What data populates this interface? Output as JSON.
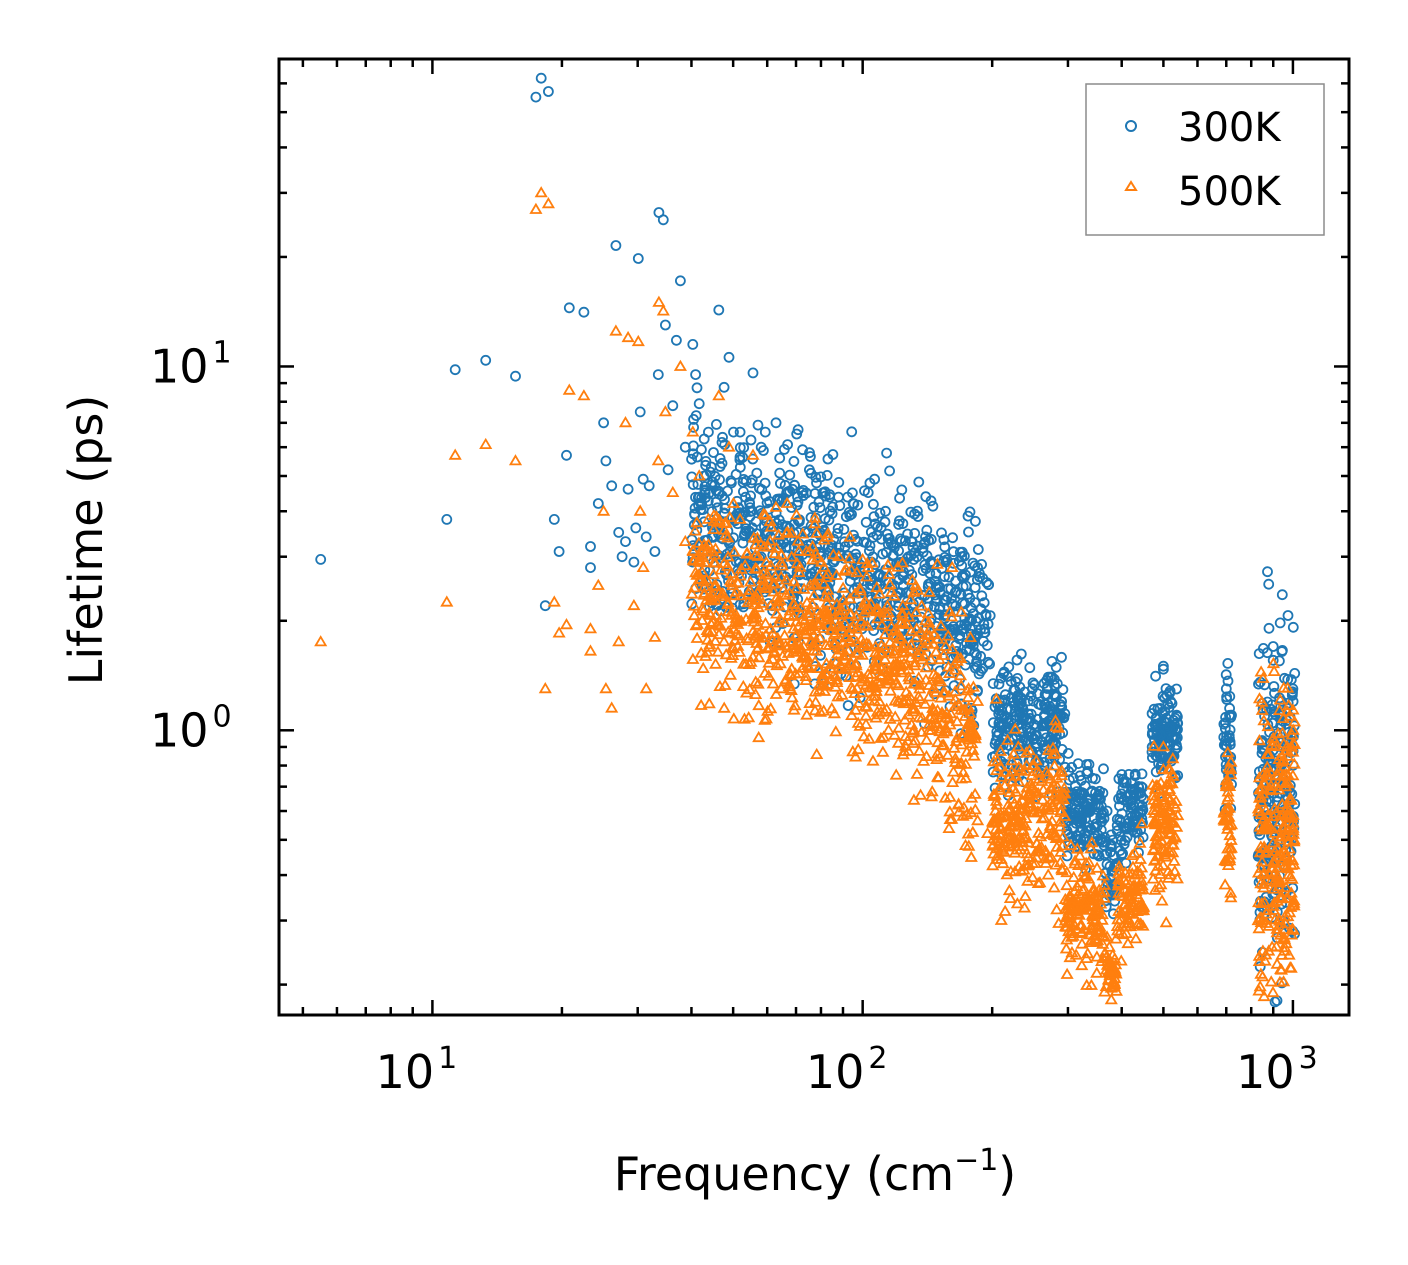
{
  "chart_data": {
    "type": "scatter",
    "xscale": "log",
    "yscale": "log",
    "xlim": [
      4.4,
      1350
    ],
    "ylim": [
      0.165,
      70
    ],
    "xlabel": "Frequency (cm",
    "xlabel_exp": "−1",
    "xlabel_close": ")",
    "ylabel": "Lifetime (ps)",
    "xticks": [
      {
        "value": 10,
        "base": "10",
        "exp": "1"
      },
      {
        "value": 100,
        "base": "10",
        "exp": "2"
      },
      {
        "value": 1000,
        "base": "10",
        "exp": "3"
      }
    ],
    "yticks": [
      {
        "value": 1,
        "base": "10",
        "exp": "0"
      },
      {
        "value": 10,
        "base": "10",
        "exp": "1"
      }
    ],
    "legend_position": "top-right",
    "series": [
      {
        "name": "300K",
        "color": "#1f77b4",
        "marker": "circle",
        "points": [
          [
            5.5,
            2.95
          ],
          [
            10.8,
            3.8
          ],
          [
            11.3,
            9.8
          ],
          [
            13.3,
            10.4
          ],
          [
            15.6,
            9.4
          ],
          [
            17.4,
            55
          ],
          [
            17.9,
            62
          ],
          [
            18.6,
            57
          ],
          [
            18.3,
            2.2
          ],
          [
            19.2,
            3.8
          ],
          [
            19.7,
            3.1
          ],
          [
            20.5,
            5.7
          ],
          [
            20.8,
            14.5
          ],
          [
            22.5,
            14.1
          ],
          [
            23.3,
            2.8
          ],
          [
            23.3,
            3.2
          ],
          [
            24.3,
            4.2
          ],
          [
            25,
            7.0
          ],
          [
            25.3,
            5.5
          ],
          [
            26.1,
            4.7
          ],
          [
            26.7,
            21.5
          ],
          [
            27.1,
            3.5
          ],
          [
            27.6,
            3.0
          ],
          [
            28.1,
            3.3
          ],
          [
            28.5,
            4.6
          ],
          [
            29.4,
            2.9
          ],
          [
            29.7,
            3.6
          ],
          [
            30.1,
            19.8
          ],
          [
            30.4,
            7.5
          ],
          [
            30.9,
            4.9
          ],
          [
            31.4,
            3.4
          ],
          [
            31.9,
            4.7
          ],
          [
            32.9,
            3.1
          ],
          [
            33.5,
            9.5
          ],
          [
            33.6,
            26.5
          ],
          [
            34.4,
            25.3
          ],
          [
            34.8,
            13.0
          ],
          [
            35.3,
            5.2
          ],
          [
            36.2,
            7.8
          ],
          [
            36.9,
            11.8
          ],
          [
            37.7,
            17.2
          ],
          [
            38.7,
            6.0
          ],
          [
            40.3,
            11.5
          ],
          [
            40.9,
            9.5
          ],
          [
            41.7,
            7.9
          ],
          [
            42.8,
            5.0
          ],
          [
            43.8,
            6.6
          ],
          [
            45,
            5.8
          ],
          [
            46.3,
            14.3
          ],
          [
            47.8,
            6.1
          ],
          [
            48.9,
            10.6
          ],
          [
            50.1,
            6.6
          ],
          [
            51.9,
            6.6
          ],
          [
            55.6,
            9.6
          ],
          [
            57.1,
            6.9
          ],
          [
            59.4,
            6.6
          ],
          [
            62.9,
            7.0
          ],
          [
            66.9,
            6.1
          ],
          [
            70.8,
            6.7
          ],
          [
            75.2,
            5.2
          ],
          [
            81,
            4.5
          ],
          [
            88,
            4.8
          ],
          [
            95,
            4.2
          ],
          [
            103,
            4.5
          ],
          [
            113,
            4.0
          ],
          [
            124,
            3.7
          ],
          [
            140,
            3.4
          ],
          [
            156,
            2.9
          ],
          [
            170,
            3.0
          ],
          [
            185,
            2.8
          ],
          [
            192,
            1.9
          ],
          [
            230,
            1.25
          ],
          [
            248,
            1.3
          ],
          [
            270,
            1.4
          ],
          [
            290,
            1.2
          ],
          [
            320,
            0.75
          ],
          [
            350,
            0.65
          ],
          [
            370,
            0.6
          ],
          [
            385,
            0.42
          ],
          [
            410,
            0.72
          ],
          [
            430,
            0.75
          ],
          [
            500,
            1.5
          ],
          [
            520,
            1.2
          ],
          [
            700,
            1.3
          ],
          [
            720,
            1.1
          ],
          [
            900,
            1.7
          ],
          [
            1000,
            1.3
          ]
        ],
        "clusters": [
          {
            "x": [
              40,
              120
            ],
            "center": [
              4.1,
              2.4
            ],
            "slope": -0.72,
            "spread": 0.13,
            "count": 650
          },
          {
            "x": [
              120,
              185
            ],
            "center": [
              2.6,
              1.9
            ],
            "slope": -0.8,
            "spread": 0.12,
            "count": 260
          },
          {
            "x": [
              185,
              200
            ],
            "center": [
              2.3,
              1.8
            ],
            "slope": 0,
            "spread": 0.1,
            "count": 30
          },
          {
            "x": [
              200,
              295
            ],
            "center": [
              0.97,
              1.05
            ],
            "slope": 0,
            "spread": 0.08,
            "count": 260
          },
          {
            "x": [
              295,
              365
            ],
            "center": [
              0.62,
              0.58
            ],
            "slope": 0,
            "spread": 0.06,
            "count": 150
          },
          {
            "x": [
              365,
              390
            ],
            "center": [
              0.42,
              0.38
            ],
            "slope": 0,
            "spread": 0.06,
            "count": 40
          },
          {
            "x": [
              390,
              450
            ],
            "center": [
              0.6,
              0.62
            ],
            "slope": 0,
            "spread": 0.06,
            "count": 90
          },
          {
            "x": [
              470,
              540
            ],
            "center": [
              1.0,
              0.95
            ],
            "slope": 0,
            "spread": 0.06,
            "count": 120
          },
          {
            "x": [
              690,
              720
            ],
            "center": [
              0.9,
              0.9
            ],
            "slope": 0,
            "spread": 0.09,
            "count": 45
          },
          {
            "x": [
              830,
              1010
            ],
            "center": [
              0.65,
              0.75
            ],
            "slope": 0,
            "spread": 0.2,
            "count": 260
          }
        ]
      },
      {
        "name": "500K",
        "color": "#ff7f0e",
        "marker": "triangle",
        "points": [
          [
            5.5,
            1.75
          ],
          [
            10.8,
            2.25
          ],
          [
            11.3,
            5.7
          ],
          [
            13.3,
            6.1
          ],
          [
            15.6,
            5.5
          ],
          [
            17.4,
            27
          ],
          [
            17.9,
            30
          ],
          [
            18.6,
            28
          ],
          [
            18.3,
            1.3
          ],
          [
            19.2,
            2.25
          ],
          [
            19.7,
            1.85
          ],
          [
            20.5,
            1.95
          ],
          [
            20.8,
            8.6
          ],
          [
            22.5,
            8.3
          ],
          [
            23.3,
            1.65
          ],
          [
            23.3,
            1.9
          ],
          [
            24.3,
            2.5
          ],
          [
            25,
            4.0
          ],
          [
            25.3,
            1.3
          ],
          [
            26.1,
            1.15
          ],
          [
            26.7,
            12.5
          ],
          [
            27.1,
            1.75
          ],
          [
            28.1,
            7.0
          ],
          [
            28.5,
            12
          ],
          [
            29.4,
            2.2
          ],
          [
            30.1,
            11.7
          ],
          [
            30.4,
            4.0
          ],
          [
            30.9,
            2.8
          ],
          [
            31.4,
            1.3
          ],
          [
            32.9,
            1.8
          ],
          [
            33.5,
            5.5
          ],
          [
            33.6,
            15
          ],
          [
            34.4,
            14.2
          ],
          [
            34.8,
            7.5
          ],
          [
            36.2,
            4.5
          ],
          [
            37.7,
            10.0
          ],
          [
            38.7,
            3.3
          ],
          [
            40.3,
            6.6
          ],
          [
            41.7,
            5.0
          ],
          [
            43.8,
            3.8
          ],
          [
            46.3,
            8.3
          ],
          [
            47.8,
            3.7
          ],
          [
            48.9,
            6.0
          ],
          [
            50.1,
            4.2
          ],
          [
            51.9,
            3.8
          ],
          [
            55.6,
            5.7
          ],
          [
            59.4,
            3.9
          ],
          [
            62.9,
            4.1
          ],
          [
            66.9,
            3.5
          ],
          [
            75.2,
            3.1
          ],
          [
            88,
            3.0
          ],
          [
            103,
            2.8
          ],
          [
            124,
            2.2
          ],
          [
            140,
            2.0
          ],
          [
            156,
            1.7
          ],
          [
            185,
            1.2
          ],
          [
            195,
            0.52
          ],
          [
            210,
            0.3
          ],
          [
            230,
            0.9
          ],
          [
            248,
            0.8
          ],
          [
            270,
            0.88
          ],
          [
            290,
            0.75
          ],
          [
            320,
            0.38
          ],
          [
            350,
            0.33
          ],
          [
            370,
            0.27
          ],
          [
            385,
            0.2
          ],
          [
            410,
            0.38
          ],
          [
            430,
            0.4
          ],
          [
            500,
            0.9
          ],
          [
            520,
            0.72
          ],
          [
            700,
            0.7
          ],
          [
            720,
            0.55
          ],
          [
            850,
            0.21
          ],
          [
            900,
            0.95
          ],
          [
            1000,
            0.75
          ]
        ],
        "clusters": [
          {
            "x": [
              40,
              120
            ],
            "center": [
              2.4,
              1.55
            ],
            "slope": -0.5,
            "spread": 0.13,
            "count": 650
          },
          {
            "x": [
              120,
              185
            ],
            "center": [
              1.5,
              0.85
            ],
            "slope": -1.0,
            "spread": 0.14,
            "count": 260
          },
          {
            "x": [
              200,
              295
            ],
            "center": [
              0.55,
              0.6
            ],
            "slope": 0,
            "spread": 0.1,
            "count": 260
          },
          {
            "x": [
              295,
              365
            ],
            "center": [
              0.33,
              0.31
            ],
            "slope": 0,
            "spread": 0.07,
            "count": 150
          },
          {
            "x": [
              365,
              390
            ],
            "center": [
              0.22,
              0.21
            ],
            "slope": 0,
            "spread": 0.04,
            "count": 40
          },
          {
            "x": [
              390,
              450
            ],
            "center": [
              0.33,
              0.35
            ],
            "slope": 0,
            "spread": 0.06,
            "count": 90
          },
          {
            "x": [
              470,
              540
            ],
            "center": [
              0.55,
              0.55
            ],
            "slope": 0,
            "spread": 0.08,
            "count": 120
          },
          {
            "x": [
              690,
              720
            ],
            "center": [
              0.55,
              0.55
            ],
            "slope": 0,
            "spread": 0.1,
            "count": 45
          },
          {
            "x": [
              830,
              1010
            ],
            "center": [
              0.42,
              0.45
            ],
            "slope": 0,
            "spread": 0.22,
            "count": 260
          }
        ]
      }
    ]
  }
}
